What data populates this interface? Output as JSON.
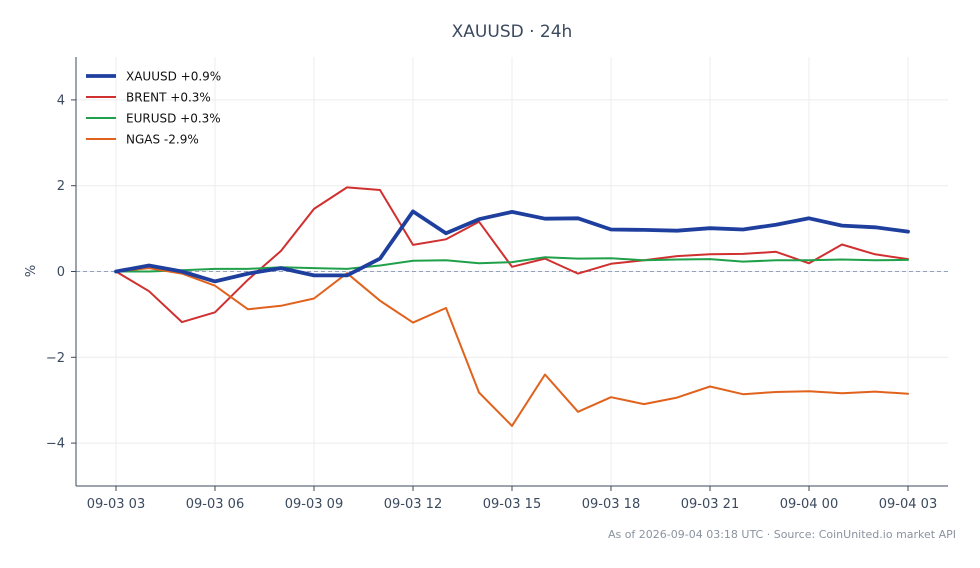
{
  "chart_data": {
    "type": "line",
    "title": "XAUUSD · 24h",
    "xlabel": "",
    "ylabel": "%",
    "ylim": [
      -5,
      5
    ],
    "yticks": [
      4,
      2,
      0,
      -2,
      -4
    ],
    "ytick_labels": [
      "4",
      "2",
      "0",
      "−2",
      "−4"
    ],
    "x": [
      "09-03 03",
      "09-03 04",
      "09-03 05",
      "09-03 06",
      "09-03 07",
      "09-03 08",
      "09-03 09",
      "09-03 10",
      "09-03 11",
      "09-03 12",
      "09-03 13",
      "09-03 14",
      "09-03 15",
      "09-03 16",
      "09-03 17",
      "09-03 18",
      "09-03 19",
      "09-03 20",
      "09-03 21",
      "09-03 22",
      "09-03 23",
      "09-04 00",
      "09-04 01",
      "09-04 02",
      "09-04 03"
    ],
    "xtick_labels": [
      "09-03 03",
      "09-03 06",
      "09-03 09",
      "09-03 12",
      "09-03 15",
      "09-03 18",
      "09-03 21",
      "09-04 00",
      "09-04 03"
    ],
    "grid": true,
    "reference_line": 0,
    "legend_position": "top-left",
    "series": [
      {
        "name": "XAUUSD +0.9%",
        "color": "#1f3f9e",
        "emphasis": true,
        "values": [
          0.0,
          0.14,
          0.0,
          -0.23,
          -0.05,
          0.08,
          -0.09,
          -0.09,
          0.3,
          1.4,
          0.89,
          1.22,
          1.39,
          1.23,
          1.24,
          0.98,
          0.97,
          0.95,
          1.01,
          0.98,
          1.09,
          1.24,
          1.07,
          1.03,
          0.93
        ]
      },
      {
        "name": "BRENT +0.3%",
        "color": "#d0302f",
        "values": [
          0.0,
          -0.46,
          -1.18,
          -0.95,
          -0.19,
          0.48,
          1.46,
          1.96,
          1.9,
          0.62,
          0.75,
          1.16,
          0.11,
          0.3,
          -0.05,
          0.18,
          0.26,
          0.36,
          0.4,
          0.41,
          0.46,
          0.19,
          0.63,
          0.4,
          0.29
        ]
      },
      {
        "name": "EURUSD +0.3%",
        "color": "#20a04a",
        "values": [
          0.0,
          0.0,
          0.03,
          0.06,
          0.06,
          0.1,
          0.08,
          0.06,
          0.14,
          0.25,
          0.26,
          0.19,
          0.22,
          0.33,
          0.3,
          0.31,
          0.26,
          0.28,
          0.29,
          0.23,
          0.26,
          0.26,
          0.28,
          0.26,
          0.27
        ]
      },
      {
        "name": "NGAS -2.9%",
        "color": "#e0621d",
        "values": [
          0.0,
          0.08,
          -0.05,
          -0.33,
          -0.88,
          -0.8,
          -0.63,
          -0.04,
          -0.68,
          -1.19,
          -0.85,
          -2.82,
          -3.6,
          -2.4,
          -3.27,
          -2.93,
          -3.09,
          -2.94,
          -2.68,
          -2.86,
          -2.81,
          -2.79,
          -2.84,
          -2.8,
          -2.85
        ]
      }
    ]
  },
  "footer": {
    "note": "As of 2026-09-04 03:18 UTC · Source: CoinUnited.io market API"
  }
}
